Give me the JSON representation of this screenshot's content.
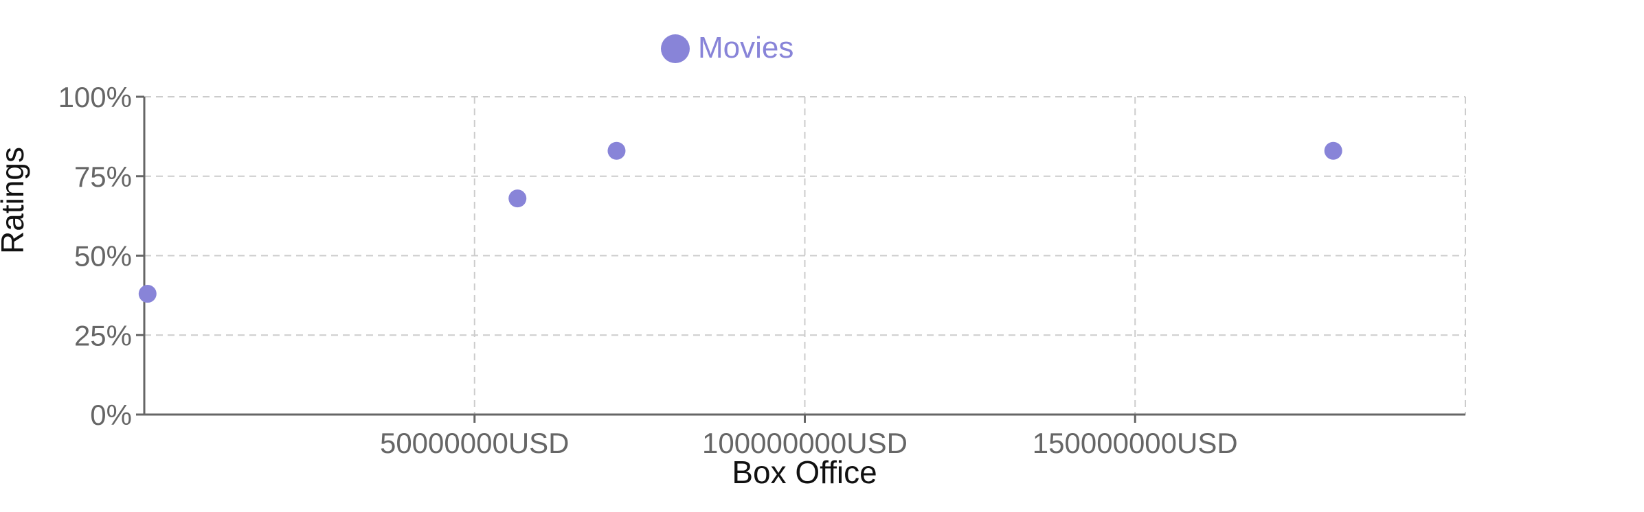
{
  "chart_data": {
    "type": "scatter",
    "xlabel": "Box Office",
    "ylabel": "Ratings",
    "xlim": [
      0,
      200000000
    ],
    "ylim": [
      0,
      100
    ],
    "x_ticks": [
      50000000,
      100000000,
      150000000
    ],
    "x_tick_labels": [
      "50000000USD",
      "100000000USD",
      "150000000USD"
    ],
    "y_ticks": [
      0,
      25,
      50,
      75,
      100
    ],
    "y_tick_labels": [
      "0%",
      "25%",
      "50%",
      "75%",
      "100%"
    ],
    "grid": true,
    "legend": "top",
    "series": [
      {
        "name": "Movies",
        "color": "#8884d8",
        "points": [
          {
            "x": 500000,
            "y": 38
          },
          {
            "x": 56500000,
            "y": 68
          },
          {
            "x": 71500000,
            "y": 83
          },
          {
            "x": 180000000,
            "y": 83
          }
        ]
      }
    ]
  }
}
